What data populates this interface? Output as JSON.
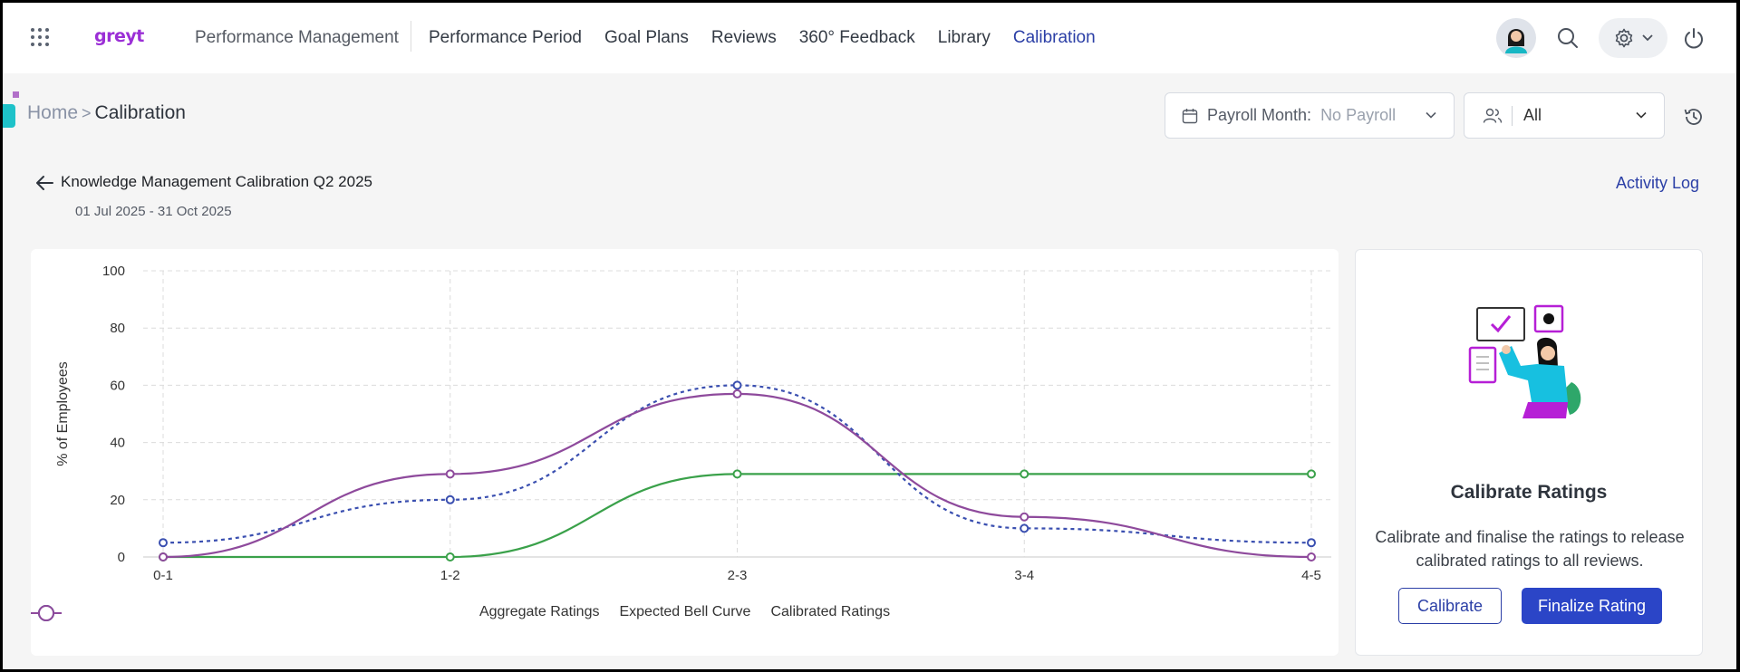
{
  "header": {
    "logo_text": "greyt",
    "module_title": "Performance Management",
    "nav_items": [
      "Performance Period",
      "Goal Plans",
      "Reviews",
      "360° Feedback",
      "Library",
      "Calibration"
    ],
    "active_nav": "Calibration"
  },
  "breadcrumb": {
    "home": "Home",
    "separator": ">",
    "current": "Calibration"
  },
  "filters": {
    "payroll_label": "Payroll Month:",
    "payroll_value": "No Payroll",
    "group_value": "All"
  },
  "calibration": {
    "title": "Knowledge Management Calibration Q2 2025",
    "date_range": "01 Jul 2025 - 31 Oct 2025",
    "activity_log": "Activity Log"
  },
  "action_card": {
    "title": "Calibrate Ratings",
    "description": "Calibrate and finalise the ratings to release calibrated ratings to all reviews.",
    "calibrate_button": "Calibrate",
    "finalize_button": "Finalize Rating"
  },
  "colors": {
    "accent": "#2b3fa6",
    "aggregate": "#3aa14a",
    "expected": "#3a4fb0",
    "calibrated": "#8e4a9c"
  },
  "chart_data": {
    "type": "line",
    "categories": [
      "0-1",
      "1-2",
      "2-3",
      "3-4",
      "4-5"
    ],
    "ylabel": "% of Employees",
    "xlabel": "",
    "ylim": [
      0,
      100
    ],
    "yticks": [
      0,
      20,
      40,
      60,
      80,
      100
    ],
    "grid": true,
    "legend_position": "bottom",
    "series": [
      {
        "name": "Aggregate Ratings",
        "values": [
          0,
          0,
          29,
          29,
          29
        ],
        "color": "#3aa14a",
        "dashed": false
      },
      {
        "name": "Expected Bell Curve",
        "values": [
          5,
          20,
          60,
          10,
          5
        ],
        "color": "#3a4fb0",
        "dashed": true
      },
      {
        "name": "Calibrated Ratings",
        "values": [
          0,
          29,
          57,
          14,
          0
        ],
        "color": "#8e4a9c",
        "dashed": false
      }
    ]
  }
}
